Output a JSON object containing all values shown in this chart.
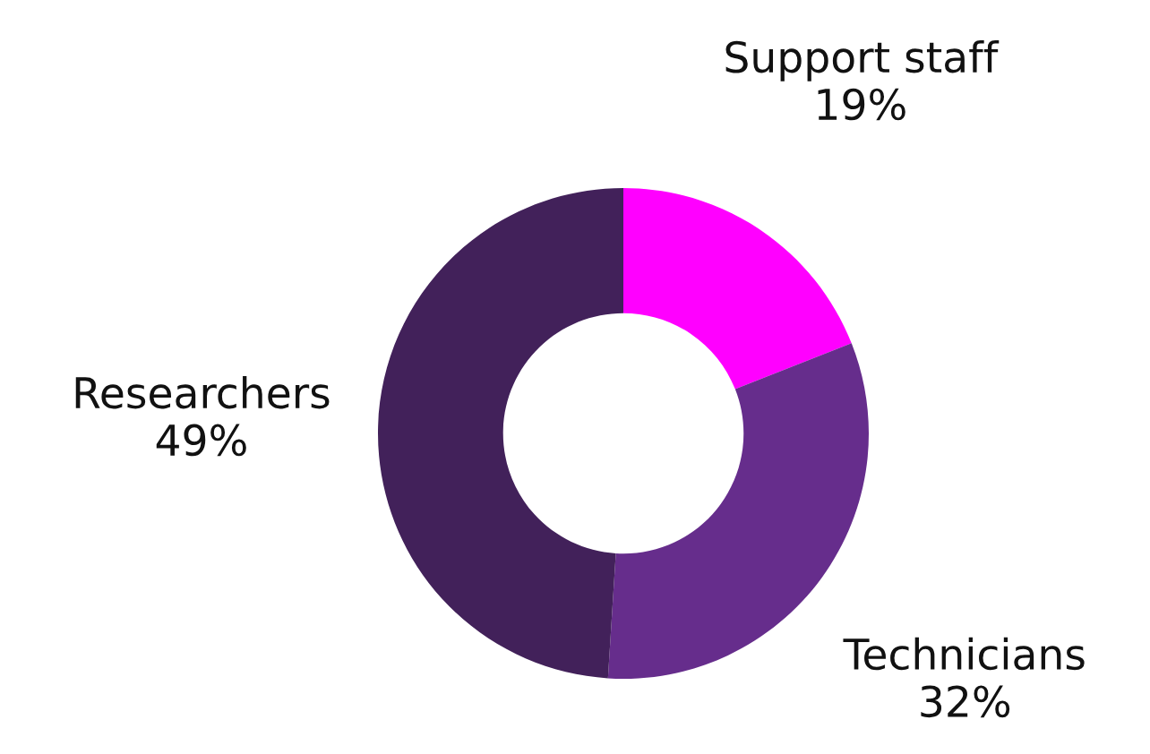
{
  "chart_data": {
    "type": "donut",
    "categories": [
      "Support staff",
      "Technicians",
      "Researchers"
    ],
    "values": [
      19,
      32,
      49
    ],
    "value_labels": [
      "19%",
      "32%",
      "49%"
    ],
    "colors": [
      "#ff00ff",
      "#662d8c",
      "#42215a"
    ],
    "legend": false
  }
}
